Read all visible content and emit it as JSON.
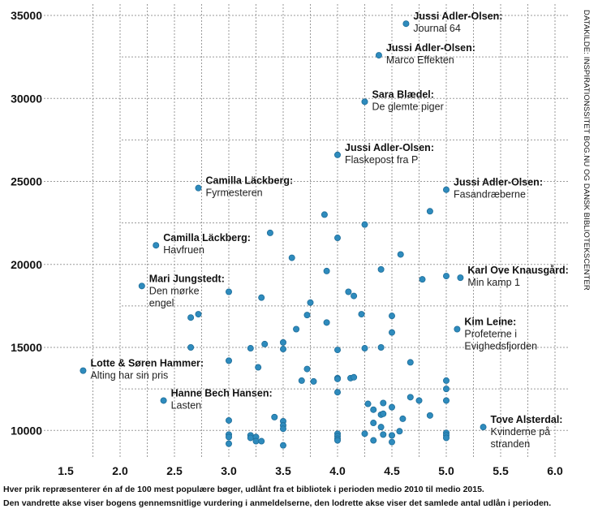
{
  "chart_data": {
    "type": "scatter",
    "title": "",
    "xlabel": "",
    "ylabel": "",
    "xlim": [
      1.5,
      6.0
    ],
    "ylim": [
      9000,
      35000
    ],
    "x_ticks": [
      "1.5",
      "2.0",
      "2.5",
      "3.0",
      "3.5",
      "4.0",
      "4.5",
      "5.0",
      "5.5",
      "6.0"
    ],
    "x_tick_values": [
      1.5,
      2.0,
      2.5,
      3.0,
      3.5,
      4.0,
      4.5,
      5.0,
      5.5,
      6.0
    ],
    "y_ticks": [
      "35000",
      "30000",
      "25000",
      "20000",
      "15000",
      "10000"
    ],
    "y_tick_values": [
      35000,
      30000,
      25000,
      20000,
      15000,
      10000
    ],
    "y_minor_grid": [
      32500,
      27500,
      22500,
      17500,
      12500
    ],
    "grid": true,
    "point_color": "#2e8bbd",
    "labeled_points": [
      {
        "x": 4.63,
        "y": 34500,
        "author": "Jussi Adler-Olsen:",
        "title": [
          "Journal 64"
        ]
      },
      {
        "x": 4.38,
        "y": 32600,
        "author": "Jussi Adler-Olsen:",
        "title": [
          "Marco Effekten"
        ]
      },
      {
        "x": 4.25,
        "y": 29800,
        "author": "Sara Blædel:",
        "title": [
          "De glemte piger"
        ]
      },
      {
        "x": 4.0,
        "y": 26600,
        "author": "Jussi Adler-Olsen:",
        "title": [
          "Flaskepost fra P"
        ]
      },
      {
        "x": 2.72,
        "y": 24600,
        "author": "Camilla Läckberg:",
        "title": [
          "Fyrmesteren"
        ]
      },
      {
        "x": 5.0,
        "y": 24500,
        "author": "Jussi Adler-Olsen:",
        "title": [
          "Fasandræberne"
        ]
      },
      {
        "x": 2.33,
        "y": 21150,
        "author": "Camilla Läckberg:",
        "title": [
          "Havfruen"
        ]
      },
      {
        "x": 2.2,
        "y": 18700,
        "author": "Mari Jungstedt:",
        "title": [
          "Den mørke",
          "engel"
        ]
      },
      {
        "x": 5.13,
        "y": 19200,
        "author": "Karl Ove Knausgård:",
        "title": [
          "Min kamp 1"
        ]
      },
      {
        "x": 5.1,
        "y": 16100,
        "author": "Kim Leine:",
        "title": [
          "Profeterne i",
          "Evighedsfjorden"
        ]
      },
      {
        "x": 1.66,
        "y": 13600,
        "author": "Lotte & Søren Hammer:",
        "title": [
          "Alting har sin pris"
        ]
      },
      {
        "x": 2.4,
        "y": 11800,
        "author": "Hanne Bech Hansen:",
        "title": [
          "Lasten"
        ]
      },
      {
        "x": 5.34,
        "y": 10200,
        "author": "Tove Alsterdal:",
        "title": [
          "Kvinderne på",
          "stranden"
        ]
      }
    ],
    "unlabeled_points": [
      {
        "x": 3.88,
        "y": 23000
      },
      {
        "x": 4.25,
        "y": 22400
      },
      {
        "x": 4.85,
        "y": 23200
      },
      {
        "x": 3.38,
        "y": 21900
      },
      {
        "x": 4.0,
        "y": 21600
      },
      {
        "x": 4.58,
        "y": 20600
      },
      {
        "x": 3.58,
        "y": 20400
      },
      {
        "x": 4.4,
        "y": 19700
      },
      {
        "x": 3.9,
        "y": 19600
      },
      {
        "x": 4.78,
        "y": 19100
      },
      {
        "x": 5.0,
        "y": 19300
      },
      {
        "x": 3.0,
        "y": 18350
      },
      {
        "x": 4.1,
        "y": 18350
      },
      {
        "x": 4.15,
        "y": 18100
      },
      {
        "x": 3.3,
        "y": 18000
      },
      {
        "x": 3.75,
        "y": 17700
      },
      {
        "x": 2.72,
        "y": 17000
      },
      {
        "x": 2.65,
        "y": 16800
      },
      {
        "x": 3.72,
        "y": 16950
      },
      {
        "x": 4.22,
        "y": 17000
      },
      {
        "x": 4.5,
        "y": 16900
      },
      {
        "x": 3.9,
        "y": 16500
      },
      {
        "x": 3.62,
        "y": 16100
      },
      {
        "x": 4.5,
        "y": 15900
      },
      {
        "x": 2.65,
        "y": 15000
      },
      {
        "x": 3.2,
        "y": 14950
      },
      {
        "x": 3.33,
        "y": 15200
      },
      {
        "x": 3.5,
        "y": 15300
      },
      {
        "x": 3.5,
        "y": 14900
      },
      {
        "x": 4.0,
        "y": 14850
      },
      {
        "x": 4.25,
        "y": 14950
      },
      {
        "x": 4.4,
        "y": 15000
      },
      {
        "x": 3.0,
        "y": 14200
      },
      {
        "x": 3.27,
        "y": 13800
      },
      {
        "x": 4.67,
        "y": 14100
      },
      {
        "x": 3.72,
        "y": 13700
      },
      {
        "x": 3.67,
        "y": 13000
      },
      {
        "x": 3.78,
        "y": 12950
      },
      {
        "x": 4.0,
        "y": 13150
      },
      {
        "x": 4.0,
        "y": 13100
      },
      {
        "x": 4.12,
        "y": 13150
      },
      {
        "x": 4.15,
        "y": 13200
      },
      {
        "x": 5.0,
        "y": 13000
      },
      {
        "x": 5.0,
        "y": 12500
      },
      {
        "x": 4.0,
        "y": 12300
      },
      {
        "x": 4.28,
        "y": 11600
      },
      {
        "x": 4.33,
        "y": 11250
      },
      {
        "x": 4.42,
        "y": 11650
      },
      {
        "x": 4.67,
        "y": 12000
      },
      {
        "x": 4.75,
        "y": 11800
      },
      {
        "x": 5.0,
        "y": 11800
      },
      {
        "x": 4.5,
        "y": 11400
      },
      {
        "x": 4.4,
        "y": 10950
      },
      {
        "x": 4.42,
        "y": 11000
      },
      {
        "x": 4.6,
        "y": 10700
      },
      {
        "x": 4.85,
        "y": 10900
      },
      {
        "x": 4.33,
        "y": 10450
      },
      {
        "x": 4.4,
        "y": 10200
      },
      {
        "x": 3.0,
        "y": 10600
      },
      {
        "x": 3.42,
        "y": 10800
      },
      {
        "x": 3.5,
        "y": 10550
      },
      {
        "x": 3.5,
        "y": 10300
      },
      {
        "x": 3.5,
        "y": 10100
      },
      {
        "x": 3.0,
        "y": 9750
      },
      {
        "x": 3.0,
        "y": 9600
      },
      {
        "x": 3.0,
        "y": 9200
      },
      {
        "x": 3.2,
        "y": 9700
      },
      {
        "x": 3.2,
        "y": 9550
      },
      {
        "x": 3.25,
        "y": 9600
      },
      {
        "x": 3.25,
        "y": 9350
      },
      {
        "x": 3.3,
        "y": 9350
      },
      {
        "x": 3.5,
        "y": 9100
      },
      {
        "x": 4.0,
        "y": 9800
      },
      {
        "x": 4.0,
        "y": 9650
      },
      {
        "x": 4.0,
        "y": 9500
      },
      {
        "x": 4.0,
        "y": 9400
      },
      {
        "x": 4.25,
        "y": 9800
      },
      {
        "x": 4.33,
        "y": 9400
      },
      {
        "x": 4.42,
        "y": 9750
      },
      {
        "x": 4.5,
        "y": 9700
      },
      {
        "x": 4.5,
        "y": 9300
      },
      {
        "x": 4.57,
        "y": 9950
      },
      {
        "x": 5.0,
        "y": 9850
      },
      {
        "x": 5.0,
        "y": 9700
      },
      {
        "x": 5.0,
        "y": 9550
      }
    ]
  },
  "source_note": "DATAKILDE: INSPIRATIONSSITET BOG.NU OG DANSK BIBLIOTEKSCENTER",
  "caption": {
    "line1": "Hver prik repræsenterer én af de 100 mest populære bøger, udlånt fra et bibliotek i perioden medio 2010 til medio 2015.",
    "line2": "Den vandrette akse viser bogens gennemsnitlige vurdering i anmeldelserne, den lodrette akse viser det samlede antal udlån i perioden."
  }
}
